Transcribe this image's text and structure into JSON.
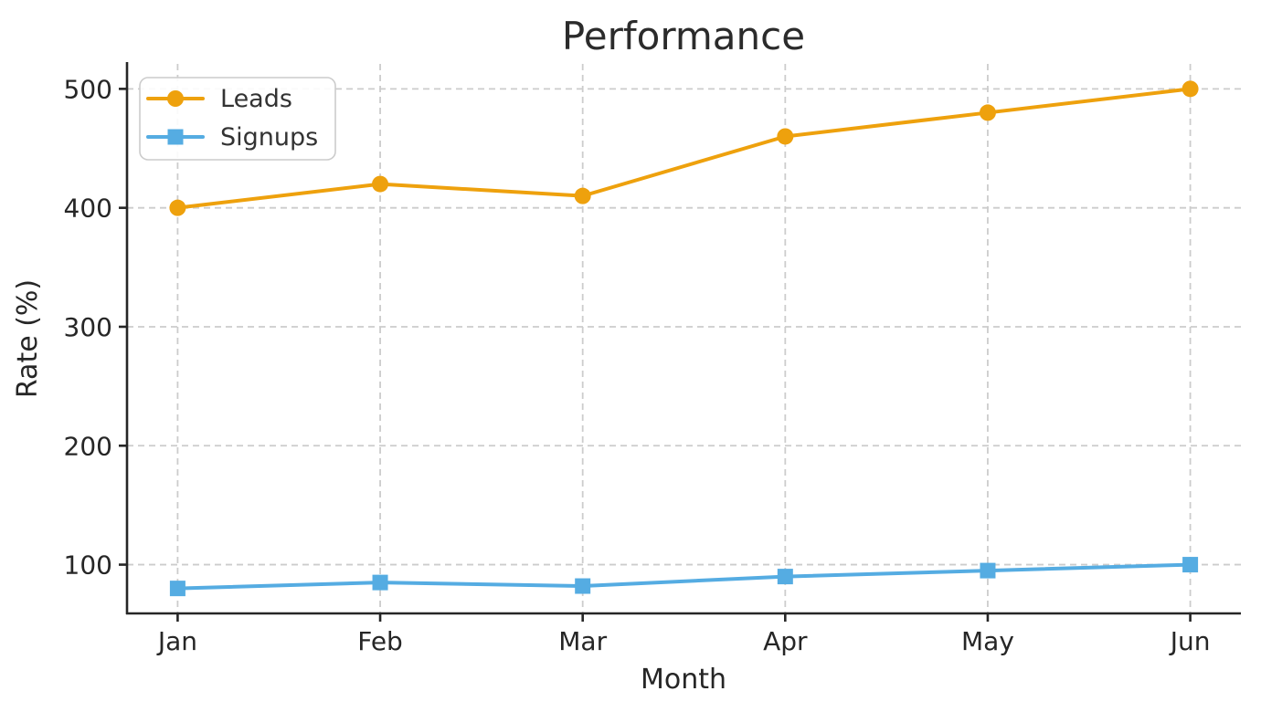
{
  "chart_data": {
    "type": "line",
    "title": "Performance",
    "xlabel": "Month",
    "ylabel": "Rate (%)",
    "categories": [
      "Jan",
      "Feb",
      "Mar",
      "Apr",
      "May",
      "Jun"
    ],
    "series": [
      {
        "name": "Leads",
        "color": "#EEA10D",
        "marker": "circle",
        "values": [
          400,
          420,
          410,
          460,
          480,
          500
        ]
      },
      {
        "name": "Signups",
        "color": "#55ACE2",
        "marker": "square",
        "values": [
          80,
          85,
          82,
          90,
          95,
          100
        ]
      }
    ],
    "yticks": [
      100,
      200,
      300,
      400,
      500
    ],
    "ylim": [
      59,
      521
    ],
    "grid": "dashed",
    "grid_on": true,
    "legend_position": "upper-left",
    "grid_color": "#cccccc",
    "spine_color": "#262626",
    "text_color": "#262626"
  }
}
